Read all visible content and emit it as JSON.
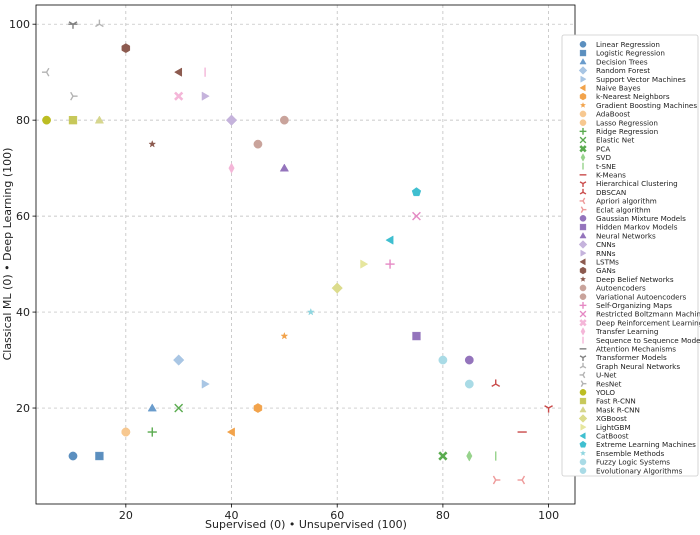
{
  "chart_data": {
    "type": "scatter",
    "title": "",
    "xlabel": "Supervised (0) • Unsupervised (100)",
    "ylabel": "Classical ML (0) • Deep Learning (100)",
    "xlim": [
      3,
      105
    ],
    "ylim": [
      0,
      104
    ],
    "xticks": [
      20,
      40,
      60,
      80,
      100
    ],
    "yticks": [
      20,
      40,
      60,
      80,
      100
    ],
    "grid": true,
    "legend_position": "right",
    "series": [
      {
        "name": "Linear Regression",
        "marker": "circle",
        "color": "#5b8fbf",
        "x": 10,
        "y": 10
      },
      {
        "name": "Logistic Regression",
        "marker": "square",
        "color": "#5b8fbf",
        "x": 15,
        "y": 10
      },
      {
        "name": "Decision Trees",
        "marker": "triangle-up",
        "color": "#6a9ccc",
        "x": 25,
        "y": 20
      },
      {
        "name": "Random Forest",
        "marker": "diamond",
        "color": "#a9c6e4",
        "x": 30,
        "y": 30
      },
      {
        "name": "Support Vector Machines",
        "marker": "triangle-right",
        "color": "#a9c6e4",
        "x": 35,
        "y": 25
      },
      {
        "name": "Naive Bayes",
        "marker": "triangle-left",
        "color": "#f2a34b",
        "x": 40,
        "y": 15
      },
      {
        "name": "k-Nearest Neighbors",
        "marker": "hexagon",
        "color": "#f2a34b",
        "x": 45,
        "y": 20
      },
      {
        "name": "Gradient Boosting Machines",
        "marker": "star",
        "color": "#f2a34b",
        "x": 50,
        "y": 35
      },
      {
        "name": "AdaBoost",
        "marker": "circle",
        "color": "#f7c890",
        "x": 20,
        "y": 15
      },
      {
        "name": "Lasso Regression",
        "marker": "circle",
        "color": "#f7c890",
        "x": 20,
        "y": 15
      },
      {
        "name": "Ridge Regression",
        "marker": "plus",
        "color": "#5aab4f",
        "x": 25,
        "y": 15
      },
      {
        "name": "Elastic Net",
        "marker": "x",
        "color": "#5aab4f",
        "x": 30,
        "y": 20
      },
      {
        "name": "PCA",
        "marker": "x-filled",
        "color": "#5aab4f",
        "x": 80,
        "y": 10
      },
      {
        "name": "SVD",
        "marker": "thin-diamond",
        "color": "#97d38c",
        "x": 85,
        "y": 10
      },
      {
        "name": "t-SNE",
        "marker": "vline",
        "color": "#97d38c",
        "x": 90,
        "y": 10
      },
      {
        "name": "K-Means",
        "marker": "hline",
        "color": "#c94a4a",
        "x": 95,
        "y": 15
      },
      {
        "name": "Hierarchical Clustering",
        "marker": "tri-down",
        "color": "#c94a4a",
        "x": 100,
        "y": 20
      },
      {
        "name": "DBSCAN",
        "marker": "tri-up",
        "color": "#c94a4a",
        "x": 90,
        "y": 25
      },
      {
        "name": "Apriori algorithm",
        "marker": "tri-left",
        "color": "#ee9a9a",
        "x": 95,
        "y": 5
      },
      {
        "name": "Eclat algorithm",
        "marker": "tri-right",
        "color": "#ee9a9a",
        "x": 90,
        "y": 5
      },
      {
        "name": "Gaussian Mixture Models",
        "marker": "circle",
        "color": "#9474bc",
        "x": 85,
        "y": 30
      },
      {
        "name": "Hidden Markov Models",
        "marker": "square",
        "color": "#9474bc",
        "x": 75,
        "y": 35
      },
      {
        "name": "Neural Networks",
        "marker": "triangle-up",
        "color": "#9474bc",
        "x": 50,
        "y": 70
      },
      {
        "name": "CNNs",
        "marker": "diamond",
        "color": "#c5b3dc",
        "x": 40,
        "y": 80
      },
      {
        "name": "RNNs",
        "marker": "triangle-right",
        "color": "#c5b3dc",
        "x": 35,
        "y": 85
      },
      {
        "name": "LSTMs",
        "marker": "triangle-left",
        "color": "#8c5a4f",
        "x": 30,
        "y": 90
      },
      {
        "name": "GANs",
        "marker": "hexagon",
        "color": "#8c5a4f",
        "x": 20,
        "y": 95
      },
      {
        "name": "Deep Belief Networks",
        "marker": "star",
        "color": "#8c5a4f",
        "x": 25,
        "y": 75
      },
      {
        "name": "Autoencoders",
        "marker": "circle",
        "color": "#c9a39b",
        "x": 50,
        "y": 80
      },
      {
        "name": "Variational Autoencoders",
        "marker": "circle",
        "color": "#c9a39b",
        "x": 45,
        "y": 75
      },
      {
        "name": "Self-Organizing Maps",
        "marker": "plus",
        "color": "#e589c4",
        "x": 70,
        "y": 50
      },
      {
        "name": "Restricted Boltzmann Machines",
        "marker": "x",
        "color": "#e589c4",
        "x": 75,
        "y": 60
      },
      {
        "name": "Deep Reinforcement Learning",
        "marker": "x-filled",
        "color": "#f4b6d8",
        "x": 30,
        "y": 85
      },
      {
        "name": "Transfer Learning",
        "marker": "thin-diamond",
        "color": "#f4b6d8",
        "x": 40,
        "y": 70
      },
      {
        "name": "Sequence to Sequence Models",
        "marker": "vline",
        "color": "#f4b6d8",
        "x": 35,
        "y": 90
      },
      {
        "name": "Attention Mechanisms",
        "marker": "hline",
        "color": "#7f7f7f",
        "x": 10,
        "y": 100
      },
      {
        "name": "Transformer Models",
        "marker": "tri-down",
        "color": "#7f7f7f",
        "x": 10,
        "y": 100
      },
      {
        "name": "Graph Neural Networks",
        "marker": "tri-up",
        "color": "#b3b3b3",
        "x": 15,
        "y": 100
      },
      {
        "name": "U-Net",
        "marker": "tri-left",
        "color": "#b3b3b3",
        "x": 5,
        "y": 90
      },
      {
        "name": "ResNet",
        "marker": "tri-right",
        "color": "#b3b3b3",
        "x": 10,
        "y": 85
      },
      {
        "name": "YOLO",
        "marker": "circle",
        "color": "#bcbd22",
        "x": 5,
        "y": 80
      },
      {
        "name": "Fast R-CNN",
        "marker": "square",
        "color": "#c7c85a",
        "x": 10,
        "y": 80
      },
      {
        "name": "Mask R-CNN",
        "marker": "triangle-up",
        "color": "#d6d68d",
        "x": 15,
        "y": 80
      },
      {
        "name": "XGBoost",
        "marker": "diamond",
        "color": "#dcdc8d",
        "x": 60,
        "y": 45
      },
      {
        "name": "LightGBM",
        "marker": "triangle-right",
        "color": "#e6e69e",
        "x": 65,
        "y": 50
      },
      {
        "name": "CatBoost",
        "marker": "triangle-left",
        "color": "#3fbfd0",
        "x": 70,
        "y": 55
      },
      {
        "name": "Extreme Learning Machines",
        "marker": "pentagon",
        "color": "#3fbfd0",
        "x": 75,
        "y": 65
      },
      {
        "name": "Ensemble Methods",
        "marker": "star",
        "color": "#8fd6e0",
        "x": 55,
        "y": 40
      },
      {
        "name": "Fuzzy Logic Systems",
        "marker": "circle",
        "color": "#a9dbe6",
        "x": 85,
        "y": 25
      },
      {
        "name": "Evolutionary Algorithms",
        "marker": "circle",
        "color": "#a9dbe6",
        "x": 80,
        "y": 30
      }
    ]
  }
}
